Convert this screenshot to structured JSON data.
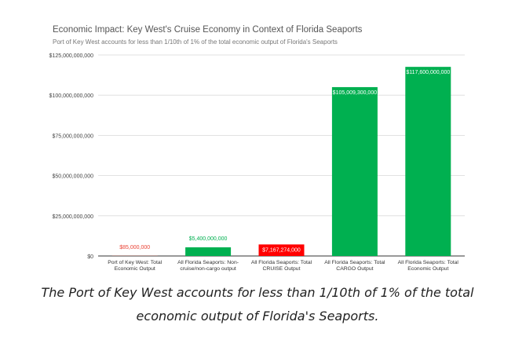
{
  "chart_data": {
    "type": "bar",
    "title": "Economic Impact: Key West's Cruise Economy in Context of Florida Seaports",
    "subtitle": "Port of Key West accounts for less than 1/10th of 1% of the total economic output of Florida's Seaports",
    "xlabel": "",
    "ylabel": "",
    "ylim": [
      0,
      125000000000
    ],
    "yticks": [
      0,
      25000000000,
      50000000000,
      75000000000,
      100000000000,
      125000000000
    ],
    "ytick_labels": [
      "$0",
      "$25,000,000,000",
      "$50,000,000,000",
      "$75,000,000,000",
      "$100,000,000,000",
      "$125,000,000,000"
    ],
    "grid": true,
    "legend": "none",
    "categories": [
      [
        "Port of Key West: Total",
        "Economic Output"
      ],
      [
        "All Florida Seaports: Non-",
        "cruise/non-cargo output"
      ],
      [
        "All Florida Seaports: Total",
        "CRUISE Output"
      ],
      [
        "All Florida Seaports: Total",
        "CARGO Output"
      ],
      [
        "All Florida Seaports: Total",
        "Economic Output"
      ]
    ],
    "values": [
      85000000,
      5400000000,
      7167274000,
      105009300000,
      117600000000
    ],
    "value_labels": [
      "$85,000,000",
      "$5,400,000,000",
      "$7,167,274,000",
      "$105,009,300,000",
      "$117,600,000,000"
    ],
    "colors": [
      "#ea4335",
      "#00b050",
      "#ff0000",
      "#00b050",
      "#00b050"
    ]
  },
  "caption": {
    "line1": "The Port of Key West accounts for less than 1/10th of 1% of the total",
    "line2": "economic output of Florida's Seaports."
  }
}
